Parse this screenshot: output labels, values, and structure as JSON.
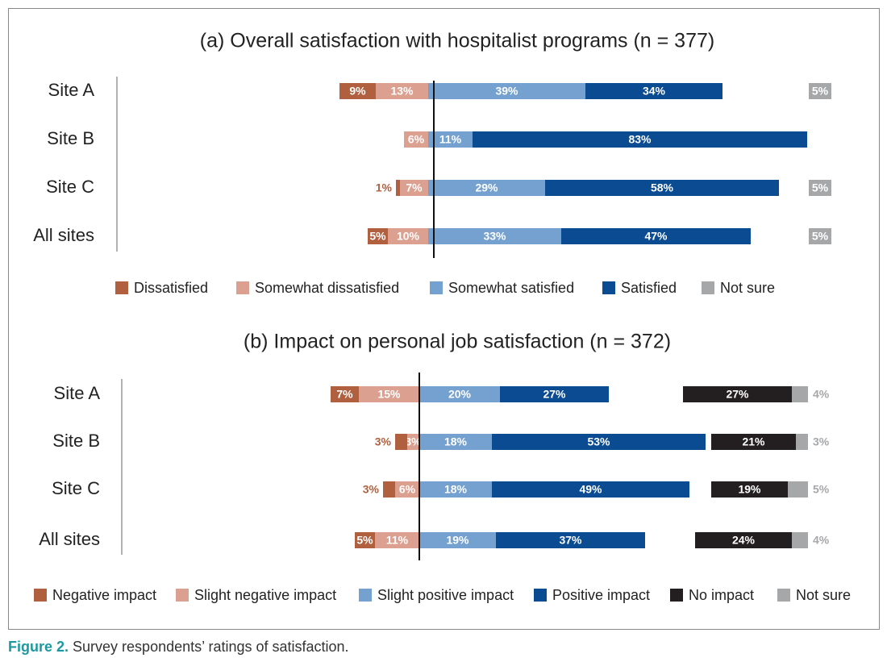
{
  "chart_data": [
    {
      "type": "bar",
      "stacked": true,
      "orientation": "horizontal",
      "title": "(a) Overall satisfaction with hospitalist programs (n = 377)",
      "categories": [
        "Site A",
        "Site B",
        "Site C",
        "All sites"
      ],
      "series": [
        {
          "name": "Dissatisfied",
          "color": "#b0603f",
          "values": [
            9,
            null,
            1,
            5
          ],
          "value_labels": [
            "9%",
            null,
            "1%",
            "5%"
          ]
        },
        {
          "name": "Somewhat dissatisfied",
          "color": "#dca091",
          "values": [
            13,
            6,
            7,
            10
          ],
          "value_labels": [
            "13%",
            "6%",
            "7%",
            "10%"
          ]
        },
        {
          "name": "Somewhat satisfied",
          "color": "#74a1cf",
          "values": [
            39,
            11,
            29,
            33
          ],
          "value_labels": [
            "39%",
            "11%",
            "29%",
            "33%"
          ]
        },
        {
          "name": "Satisfied",
          "color": "#0a4b91",
          "values": [
            34,
            83,
            58,
            47
          ],
          "value_labels": [
            "34%",
            "83%",
            "58%",
            "47%"
          ]
        },
        {
          "name": "Not sure",
          "color": "#a6a7a9",
          "values": [
            5,
            null,
            5,
            5
          ],
          "value_labels": [
            "5%",
            null,
            "5%",
            "5%"
          ]
        }
      ]
    },
    {
      "type": "bar",
      "stacked": true,
      "orientation": "horizontal",
      "title": "(b) Impact on personal job satisfaction (n = 372)",
      "categories": [
        "Site A",
        "Site B",
        "Site C",
        "All sites"
      ],
      "series": [
        {
          "name": "Negative impact",
          "color": "#b0603f",
          "values": [
            7,
            3,
            3,
            5
          ],
          "value_labels": [
            "7%",
            "3%",
            "3%",
            "5%"
          ]
        },
        {
          "name": "Slight negative impact",
          "color": "#dca091",
          "values": [
            15,
            3,
            6,
            11
          ],
          "value_labels": [
            "15%",
            "3%",
            "6%",
            "11%"
          ]
        },
        {
          "name": "Slight positive impact",
          "color": "#74a1cf",
          "values": [
            20,
            18,
            18,
            19
          ],
          "value_labels": [
            "20%",
            "18%",
            "18%",
            "19%"
          ]
        },
        {
          "name": "Positive impact",
          "color": "#0a4b91",
          "values": [
            27,
            53,
            49,
            37
          ],
          "value_labels": [
            "27%",
            "53%",
            "49%",
            "37%"
          ]
        },
        {
          "name": "No impact",
          "color": "#231f20",
          "values": [
            27,
            21,
            19,
            24
          ],
          "value_labels": [
            "27%",
            "21%",
            "19%",
            "24%"
          ]
        },
        {
          "name": "Not sure",
          "color": "#a6a7a9",
          "values": [
            4,
            3,
            5,
            4
          ],
          "value_labels": [
            "4%",
            "3%",
            "5%",
            "4%"
          ]
        }
      ]
    }
  ],
  "caption": {
    "label": "Figure 2.",
    "text": "Survey respondents’ ratings of satisfaction."
  }
}
